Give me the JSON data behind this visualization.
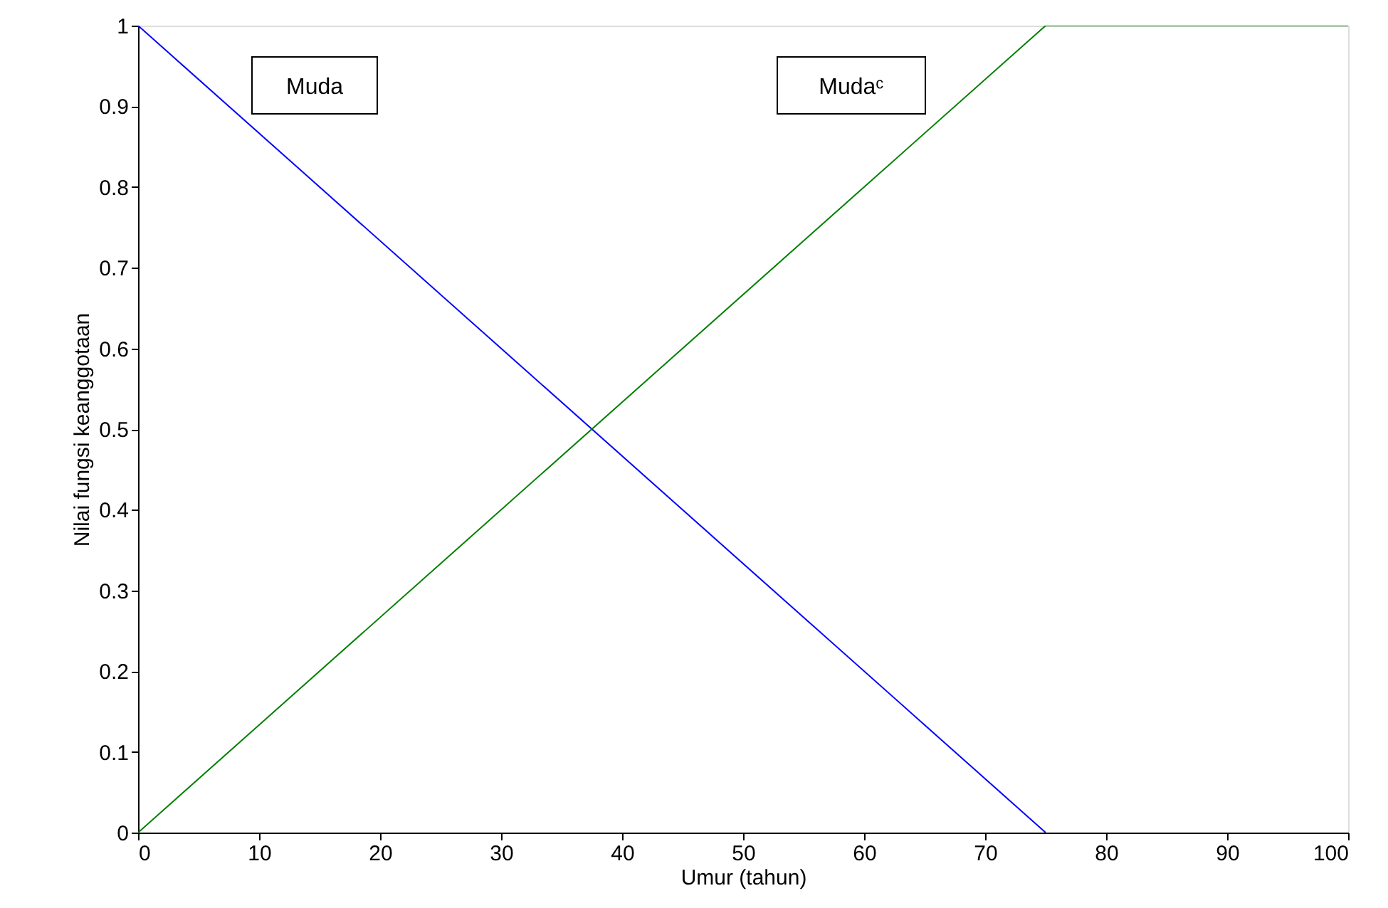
{
  "chart_data": {
    "type": "line",
    "xlabel": "Umur (tahun)",
    "ylabel": "Nilai fungsi keanggotaan",
    "xlim": [
      0,
      100
    ],
    "xticks": [
      0,
      10,
      20,
      30,
      40,
      50,
      60,
      70,
      80,
      90,
      100
    ],
    "ylim": [
      0,
      1
    ],
    "yticks": [
      0,
      0.1,
      0.2,
      0.3,
      0.4,
      0.5,
      0.6,
      0.7,
      0.8,
      0.9,
      1
    ],
    "grid": false,
    "marker": "none",
    "line_style": "solid",
    "series": [
      {
        "name": "Muda",
        "color": "#0000ff",
        "x": [
          0,
          75
        ],
        "values": [
          1,
          0
        ]
      },
      {
        "name": "Mudaᶜ",
        "color": "#008000",
        "x": [
          0,
          75,
          100
        ],
        "values": [
          0,
          1,
          1
        ]
      }
    ]
  }
}
